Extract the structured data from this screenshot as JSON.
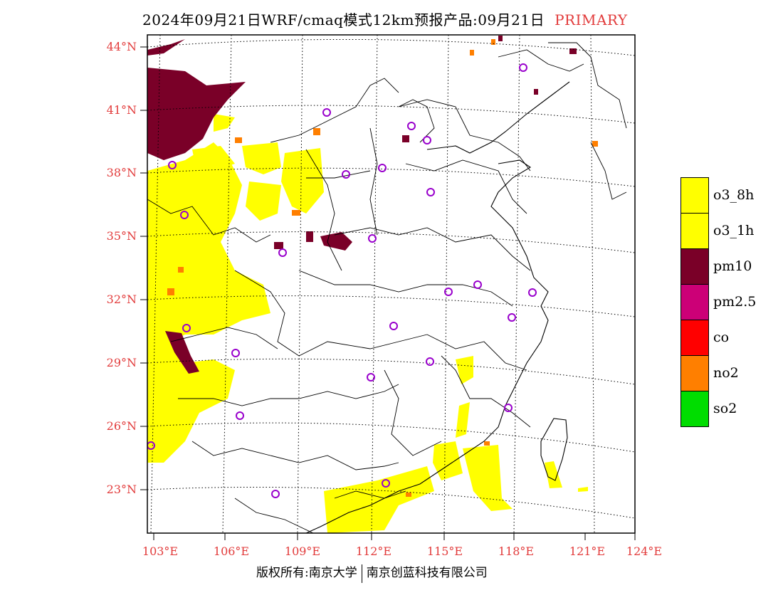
{
  "header": {
    "title": "2024年09月21日WRF/cmaq模式12km预报产品:09月21日",
    "primary": "PRIMARY"
  },
  "axes": {
    "lat_labels": [
      "44°N",
      "41°N",
      "38°N",
      "35°N",
      "32°N",
      "29°N",
      "26°N",
      "23°N"
    ],
    "lon_labels": [
      "103°E",
      "106°E",
      "109°E",
      "112°E",
      "115°E",
      "118°E",
      "121°E",
      "124°E"
    ]
  },
  "legend": {
    "items": [
      {
        "label": "o3_8h",
        "color": "#ffff00"
      },
      {
        "label": "o3_1h",
        "color": "#ffff00"
      },
      {
        "label": "pm10",
        "color": "#7a0028"
      },
      {
        "label": "pm2.5",
        "color": "#cc0077"
      },
      {
        "label": "co",
        "color": "#ff0000"
      },
      {
        "label": "no2",
        "color": "#ff7f00"
      },
      {
        "label": "so2",
        "color": "#00dd00"
      }
    ]
  },
  "footer": {
    "left": "版权所有:南京大学",
    "right": "南京创蓝科技有限公司"
  },
  "colors": {
    "label_red": "#e23b3b",
    "station_marker": "#9900cc"
  }
}
